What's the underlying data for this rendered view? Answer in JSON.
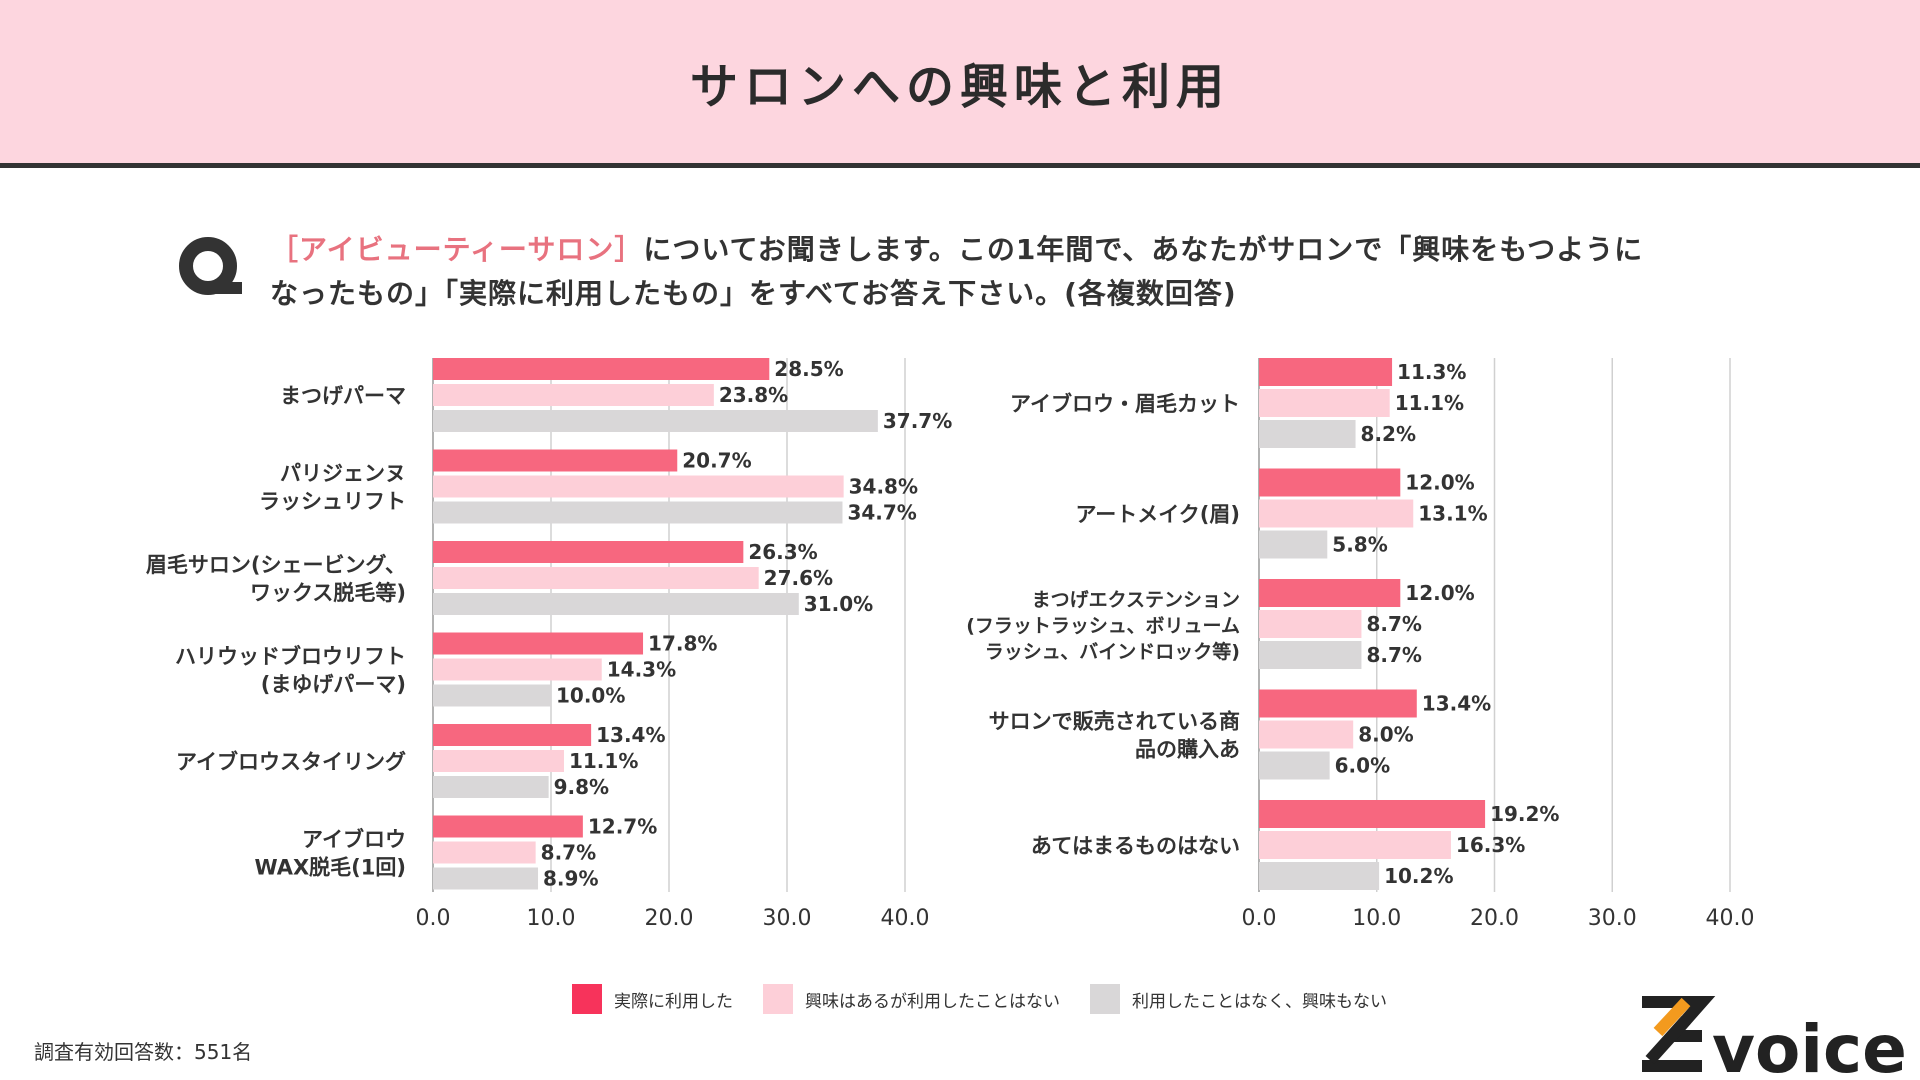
{
  "header": {
    "title": "サロンへの興味と利用"
  },
  "question": {
    "highlight": "［アイビューティーサロン］",
    "line1": "についてお聞きします。この1年間で、あなたがサロンで「興味をもつように",
    "line2": "なったもの」「実際に利用したもの」をすべてお答え下さい。(各複数回答)"
  },
  "colors": {
    "used": "#f7677f",
    "interested": "#fdcfd8",
    "none": "#d9d7d8",
    "header_bg": "#fdd6df",
    "q_mark": "#333333"
  },
  "chart_data": [
    {
      "type": "bar",
      "orientation": "horizontal",
      "categories": [
        [
          "まつげパーマ"
        ],
        [
          "パリジェンヌ",
          "ラッシュリフト"
        ],
        [
          "眉毛サロン(シェービング、",
          "ワックス脱毛等)"
        ],
        [
          "ハリウッドブロウリフト",
          "(まゆげパーマ)"
        ],
        [
          "アイブロウスタイリング"
        ],
        [
          "アイブロウ",
          "WAX脱毛(1回)"
        ]
      ],
      "series": [
        {
          "name": "実際に利用した",
          "values": [
            28.5,
            20.7,
            26.3,
            17.8,
            13.4,
            12.7
          ]
        },
        {
          "name": "興味はあるが利用したことはない",
          "values": [
            23.8,
            34.8,
            27.6,
            14.3,
            11.1,
            8.7
          ]
        },
        {
          "name": "利用したことはなく、興味もない",
          "values": [
            37.7,
            34.7,
            31.0,
            10.0,
            9.8,
            8.9
          ]
        }
      ],
      "xlim": [
        0,
        40
      ],
      "xticks": [
        "0.0",
        "10.0",
        "20.0",
        "30.0",
        "40.0"
      ],
      "value_suffix": "%"
    },
    {
      "type": "bar",
      "orientation": "horizontal",
      "categories": [
        [
          "アイブロウ・眉毛カット"
        ],
        [
          "アートメイク(眉)"
        ],
        [
          "まつげエクステンション",
          "(フラットラッシュ、ボリューム",
          "ラッシュ、バインドロック等)"
        ],
        [
          "サロンで販売されている商",
          "品の購入あ"
        ],
        [
          "あてはまるものはない"
        ]
      ],
      "series": [
        {
          "name": "実際に利用した",
          "values": [
            11.3,
            12.0,
            12.0,
            13.4,
            19.2
          ]
        },
        {
          "name": "興味はあるが利用したことはない",
          "values": [
            11.1,
            13.1,
            8.7,
            8.0,
            16.3
          ]
        },
        {
          "name": "利用したことはなく、興味もない",
          "values": [
            8.2,
            5.8,
            8.7,
            6.0,
            10.2
          ]
        }
      ],
      "xlim": [
        0,
        40
      ],
      "xticks": [
        "0.0",
        "10.0",
        "20.0",
        "30.0",
        "40.0"
      ],
      "value_suffix": "%"
    }
  ],
  "legend": {
    "items": [
      {
        "label": "実際に利用した",
        "color": "#f7335b"
      },
      {
        "label": "興味はあるが利用したことはない",
        "color": "#fdcfd8"
      },
      {
        "label": "利用したことはなく、興味もない",
        "color": "#d9d7d8"
      }
    ]
  },
  "footnote": "調査有効回答数：551名",
  "logo": {
    "text": "voice",
    "mark": "Z"
  }
}
